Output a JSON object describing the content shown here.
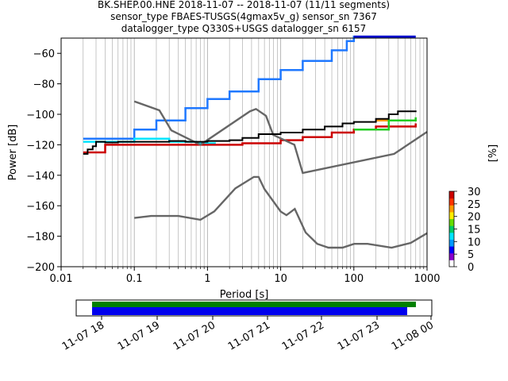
{
  "chart_data": {
    "type": "line",
    "title_lines": [
      "BK.SHEP.00.HNE   2018-11-07 -- 2018-11-07  (11/11 segments)",
      "sensor_type FBAES-TUSGS(4gmax5v_g) sensor_sn 7367",
      "datalogger_type Q330S+USGS datalogger_sn 6157"
    ],
    "xlabel": "Period [s]",
    "ylabel": "Power [dB]",
    "xscale": "log",
    "xlim": [
      0.01,
      1000
    ],
    "ylim": [
      -200,
      -50
    ],
    "x_ticks": [
      {
        "value": 0.01,
        "label": "0.01"
      },
      {
        "value": 0.1,
        "label": "0.1"
      },
      {
        "value": 1,
        "label": "1"
      },
      {
        "value": 10,
        "label": "10"
      },
      {
        "value": 100,
        "label": "100"
      },
      {
        "value": 1000,
        "label": "1000"
      }
    ],
    "y_ticks": [
      {
        "value": -200,
        "label": "−200"
      },
      {
        "value": -180,
        "label": "−180"
      },
      {
        "value": -160,
        "label": "−160"
      },
      {
        "value": -140,
        "label": "−140"
      },
      {
        "value": -120,
        "label": "−120"
      },
      {
        "value": -100,
        "label": "−100"
      },
      {
        "value": -80,
        "label": "−80"
      },
      {
        "value": -60,
        "label": "−60"
      }
    ],
    "grid": "vertical",
    "noise_models": [
      {
        "name": "",
        "color": "#666666",
        "points": [
          [
            0.1,
            -168
          ],
          [
            0.17,
            -166.7
          ],
          [
            0.4,
            -166.7
          ],
          [
            0.8,
            -169.2
          ],
          [
            1.24,
            -163.7
          ],
          [
            2.4,
            -148.6
          ],
          [
            4.3,
            -141.1
          ],
          [
            5.0,
            -141.1
          ],
          [
            6.0,
            -149.0
          ],
          [
            10.0,
            -163.8
          ],
          [
            12.0,
            -166.2
          ],
          [
            15.6,
            -162.1
          ],
          [
            21.9,
            -177.5
          ],
          [
            31.6,
            -185.0
          ],
          [
            45,
            -187.5
          ],
          [
            70,
            -187.5
          ],
          [
            101,
            -185.0
          ],
          [
            154,
            -185.0
          ],
          [
            328,
            -187.5
          ],
          [
            600,
            -184.4
          ],
          [
            1000,
            -178
          ]
        ]
      },
      {
        "name": "",
        "color": "#666666",
        "points": [
          [
            0.1,
            -91.5
          ],
          [
            0.22,
            -97.4
          ],
          [
            0.32,
            -110.5
          ],
          [
            0.8,
            -120.0
          ],
          [
            3.8,
            -98.0
          ],
          [
            4.6,
            -96.5
          ],
          [
            6.3,
            -101.0
          ],
          [
            7.9,
            -113.5
          ],
          [
            15.4,
            -120.0
          ],
          [
            20.0,
            -138.5
          ],
          [
            354.8,
            -126.0
          ],
          [
            1000,
            -111.5
          ]
        ]
      }
    ],
    "series": [
      {
        "name": "",
        "color": "#000000",
        "points": [
          [
            0.02,
            -126
          ],
          [
            0.023,
            -123
          ],
          [
            0.027,
            -121
          ],
          [
            0.03,
            -118
          ],
          [
            0.04,
            -118.5
          ],
          [
            0.06,
            -118
          ],
          [
            0.1,
            -118
          ],
          [
            0.3,
            -117.5
          ],
          [
            0.5,
            -118
          ],
          [
            1,
            -117.5
          ],
          [
            2,
            -117
          ],
          [
            3,
            -115.5
          ],
          [
            5,
            -113
          ],
          [
            10,
            -112
          ],
          [
            20,
            -110
          ],
          [
            40,
            -108
          ],
          [
            70,
            -106
          ],
          [
            100,
            -105
          ],
          [
            200,
            -103
          ],
          [
            300,
            -100
          ],
          [
            400,
            -98
          ],
          [
            700,
            -97.5
          ]
        ]
      }
    ],
    "pdf_bands": [
      {
        "color": "#1f78ff",
        "points": [
          [
            0.02,
            -116
          ],
          [
            0.1,
            -110
          ],
          [
            0.2,
            -104
          ],
          [
            0.5,
            -96
          ],
          [
            1,
            -90
          ],
          [
            2,
            -85
          ],
          [
            5,
            -77
          ],
          [
            10,
            -71
          ],
          [
            20,
            -65
          ],
          [
            50,
            -58
          ],
          [
            80,
            -52
          ],
          [
            100,
            -49
          ],
          [
            300,
            -49
          ],
          [
            700,
            -49
          ]
        ]
      },
      {
        "color": "#00e5ff",
        "points": [
          [
            0.02,
            -118
          ],
          [
            0.1,
            -116
          ],
          [
            0.3,
            -118
          ],
          [
            0.7,
            -119
          ],
          [
            1.3,
            -119
          ]
        ]
      },
      {
        "color": "#cc0000",
        "points": [
          [
            0.02,
            -125
          ],
          [
            0.04,
            -120
          ],
          [
            0.1,
            -120
          ],
          [
            1,
            -120
          ],
          [
            3,
            -119
          ],
          [
            10,
            -117
          ],
          [
            20,
            -115
          ],
          [
            50,
            -112
          ],
          [
            100,
            -110
          ],
          [
            200,
            -108
          ],
          [
            700,
            -106
          ]
        ]
      },
      {
        "color": "#ff9900",
        "points": [
          [
            200,
            -104
          ],
          [
            700,
            -103
          ]
        ]
      },
      {
        "color": "#22cc22",
        "points": [
          [
            100,
            -110
          ],
          [
            300,
            -104
          ],
          [
            700,
            -102
          ]
        ]
      },
      {
        "color": "#0000cc",
        "points": [
          [
            100,
            -49
          ],
          [
            700,
            -49
          ]
        ]
      }
    ],
    "colorbar": {
      "label": "[%]",
      "range": [
        0,
        30
      ],
      "ticks": [
        "0",
        "5",
        "10",
        "15",
        "20",
        "25",
        "30"
      ],
      "colors": [
        "#ffffff",
        "#8800cc",
        "#0000ff",
        "#0099ff",
        "#00e5ff",
        "#00cc66",
        "#66dd00",
        "#ffee00",
        "#ff9900",
        "#ff3300",
        "#cc0000"
      ]
    },
    "timeline": {
      "tick_labels": [
        "11-07 18",
        "11-07 19",
        "11-07 20",
        "11-07 21",
        "11-07 22",
        "11-07 23",
        "11-08 00"
      ],
      "bars": [
        {
          "name": "",
          "color": "#008000"
        },
        {
          "name": "",
          "color": "#0000ee"
        }
      ]
    }
  }
}
